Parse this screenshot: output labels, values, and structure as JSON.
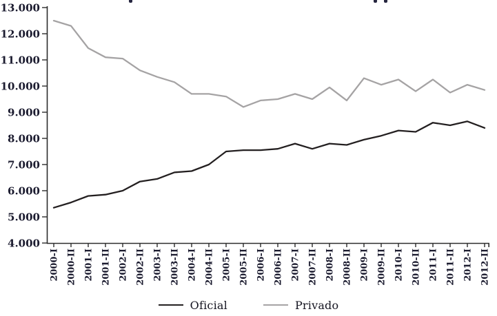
{
  "chart_data": {
    "type": "line",
    "title": "",
    "categories": [
      "2000-I",
      "2000-II",
      "2001-I",
      "2001-II",
      "2002-I",
      "2002-II",
      "2003-I",
      "2003-II",
      "2004-I",
      "2004-II",
      "2005-I",
      "2005-II",
      "2006-I",
      "2006-II",
      "2007-I",
      "2007-II",
      "2008-I",
      "2008-II",
      "2009-I",
      "2009-II",
      "2010-I",
      "2010-II",
      "2011-I",
      "2011-II",
      "2012-I",
      "2012-II"
    ],
    "series": [
      {
        "name": "Oficial",
        "color": "#231f20",
        "values": [
          5350,
          5550,
          5800,
          5850,
          6000,
          6350,
          6450,
          6700,
          6750,
          7000,
          7500,
          7550,
          7550,
          7600,
          7800,
          7600,
          7800,
          7750,
          7950,
          8100,
          8300,
          8250,
          8600,
          8500,
          8650,
          8400
        ]
      },
      {
        "name": "Privado",
        "color": "#a5a3a4",
        "values": [
          12500,
          12300,
          11450,
          11100,
          11050,
          10600,
          10350,
          10150,
          9700,
          9700,
          9600,
          9200,
          9450,
          9500,
          9700,
          9500,
          9950,
          9450,
          10300,
          10050,
          10250,
          9800,
          10250,
          9750,
          10050,
          9850
        ]
      }
    ],
    "ylim": [
      4000,
      13000
    ],
    "yticks": [
      {
        "v": 4000,
        "label": "4.000"
      },
      {
        "v": 5000,
        "label": "5.000"
      },
      {
        "v": 6000,
        "label": "6.000"
      },
      {
        "v": 7000,
        "label": "7.000"
      },
      {
        "v": 8000,
        "label": "8.000"
      },
      {
        "v": 9000,
        "label": "9.000"
      },
      {
        "v": 10000,
        "label": "10.000"
      },
      {
        "v": 11000,
        "label": "11.000"
      },
      {
        "v": 12000,
        "label": "12.000"
      },
      {
        "v": 13000,
        "label": "13.000"
      }
    ],
    "grid": false,
    "legend_position": "bottom",
    "axis_color": "#2b2b2b",
    "label_color": "#1b1b2f"
  },
  "legend": {
    "items": [
      {
        "label": "Oficial",
        "color": "#231f20"
      },
      {
        "label": "Privado",
        "color": "#a5a3a4"
      }
    ]
  }
}
